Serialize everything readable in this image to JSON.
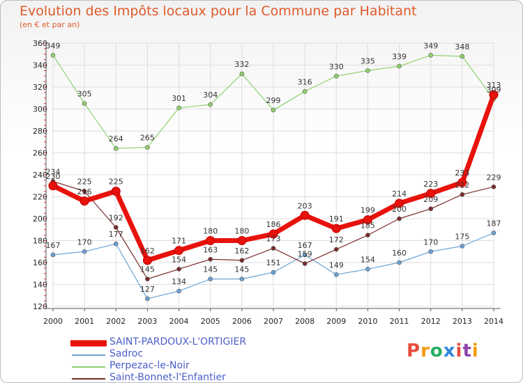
{
  "header": {
    "title": "Evolution des Impôts locaux pour la Commune par Habitant",
    "subtitle": "(en € et par an)"
  },
  "logo": {
    "text": "Proxiti",
    "colors": [
      "#e74c3c",
      "#f39c12",
      "#27ae60",
      "#2e86de",
      "#e74c3c",
      "#8e44ad",
      "#f39c12"
    ]
  },
  "chart_data": {
    "type": "line",
    "title": "Evolution des Impôts locaux pour la Commune par Habitant",
    "subtitle": "(en € et par an)",
    "xlabel": "",
    "ylabel": "",
    "x": [
      "2000",
      "2001",
      "2002",
      "2003",
      "2004",
      "2005",
      "2006",
      "2007",
      "2008",
      "2009",
      "2010",
      "2011",
      "2012",
      "2013",
      "2014"
    ],
    "ylim": [
      120,
      360
    ],
    "yticks": [
      120,
      140,
      160,
      180,
      200,
      220,
      240,
      260,
      280,
      300,
      320,
      340,
      360
    ],
    "grid": true,
    "legend_position": "bottom-left",
    "series": [
      {
        "name": "SAINT-PARDOUX-L'ORTIGIER",
        "color": "#e8120c",
        "emphasis": true,
        "values": [
          230,
          216,
          225,
          162,
          171,
          180,
          180,
          186,
          203,
          191,
          199,
          214,
          223,
          233,
          313
        ]
      },
      {
        "name": "Sadroc",
        "color": "#6aa3d5",
        "emphasis": false,
        "values": [
          167,
          170,
          177,
          127,
          134,
          145,
          145,
          151,
          167,
          149,
          154,
          160,
          170,
          175,
          187
        ]
      },
      {
        "name": "Perpezac-le-Noir",
        "color": "#8fd16b",
        "emphasis": false,
        "values": [
          349,
          305,
          264,
          265,
          301,
          304,
          332,
          299,
          316,
          330,
          335,
          339,
          349,
          348,
          309
        ]
      },
      {
        "name": "Saint-Bonnet-l'Enfantier",
        "color": "#7b2a2a",
        "emphasis": false,
        "values": [
          234,
          225,
          192,
          145,
          154,
          163,
          162,
          173,
          159,
          172,
          185,
          200,
          209,
          222,
          229
        ]
      }
    ]
  }
}
